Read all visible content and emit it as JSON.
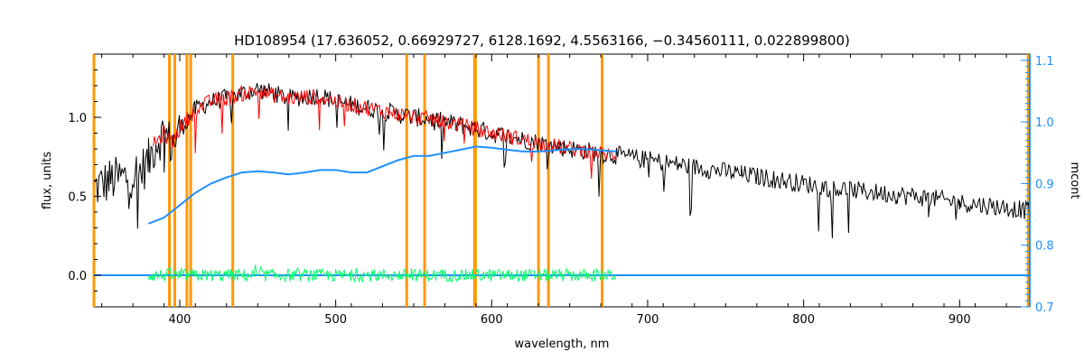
{
  "chart_data": {
    "type": "line",
    "title": "HD108954    (17.636052, 0.66929727, 6128.1692, 4.5563166, −0.34560111, 0.022899800)",
    "xlabel": "wavelength, nm",
    "ylabel": "flux, units",
    "ylabel_right": "mcont",
    "xlim": [
      345,
      945
    ],
    "ylim": [
      -0.2,
      1.4
    ],
    "ylim_right": [
      0.7,
      1.11
    ],
    "x_ticks": [
      400,
      500,
      600,
      700,
      800,
      900
    ],
    "y_ticks": [
      0.0,
      0.5,
      1.0
    ],
    "y_right_ticks": [
      0.7,
      0.8,
      0.9,
      1.0,
      1.1
    ],
    "y_ticks_labels": [
      "0.0",
      "0.5",
      "1.0"
    ],
    "y_right_ticks_labels": [
      "0.7",
      "0.8",
      "0.9",
      "1.0",
      "1.1"
    ],
    "grid": false,
    "colors": {
      "observed": "#000000",
      "model": "#ff0000",
      "residual": "#00ff66",
      "continuum": "#1e90ff",
      "lines": "#ff9900",
      "right_axis": "#1e90ff"
    },
    "vertical_lines_x": [
      345,
      393.4,
      396.8,
      404.6,
      407.0,
      434.0,
      545.5,
      557.0,
      589.0,
      589.6,
      630.0,
      636.4,
      670.8,
      944
    ],
    "series": [
      {
        "kind": "observed",
        "x": [
          345,
          355,
          365,
          375,
          380,
          385,
          390,
          395,
          400,
          410,
          420,
          430,
          440,
          450,
          460,
          470,
          480,
          490,
          500,
          510,
          520,
          530,
          540,
          550,
          560,
          570,
          580,
          590,
          600,
          610,
          620,
          630,
          640,
          650,
          660,
          670,
          680,
          700,
          720,
          740,
          760,
          780,
          800,
          820,
          840,
          860,
          880,
          900,
          920,
          945
        ],
        "y": [
          0.55,
          0.6,
          0.62,
          0.66,
          0.72,
          0.85,
          0.9,
          0.82,
          0.92,
          1.05,
          1.1,
          1.12,
          1.15,
          1.18,
          1.15,
          1.12,
          1.13,
          1.14,
          1.1,
          1.08,
          1.06,
          1.04,
          1.02,
          1.0,
          0.99,
          0.97,
          0.95,
          0.93,
          0.9,
          0.88,
          0.86,
          0.84,
          0.82,
          0.8,
          0.79,
          0.77,
          0.76,
          0.73,
          0.7,
          0.67,
          0.64,
          0.61,
          0.58,
          0.55,
          0.53,
          0.51,
          0.49,
          0.46,
          0.44,
          0.41
        ]
      },
      {
        "kind": "model",
        "x": [
          383,
          390,
          395,
          400,
          410,
          420,
          430,
          440,
          450,
          460,
          470,
          480,
          490,
          500,
          510,
          520,
          530,
          540,
          550,
          560,
          570,
          580,
          590,
          600,
          610,
          620,
          630,
          640,
          650,
          660,
          670,
          680
        ],
        "y": [
          0.82,
          0.9,
          0.84,
          0.93,
          1.05,
          1.1,
          1.12,
          1.15,
          1.17,
          1.14,
          1.12,
          1.13,
          1.13,
          1.1,
          1.08,
          1.06,
          1.04,
          1.02,
          1.0,
          0.99,
          0.97,
          0.95,
          0.93,
          0.9,
          0.88,
          0.86,
          0.84,
          0.82,
          0.8,
          0.79,
          0.77,
          0.76
        ]
      },
      {
        "kind": "continuum",
        "x": [
          380,
          390,
          400,
          410,
          420,
          430,
          440,
          450,
          460,
          470,
          480,
          490,
          500,
          510,
          520,
          530,
          540,
          550,
          560,
          570,
          580,
          590,
          600,
          610,
          620,
          630,
          640,
          650,
          660,
          670,
          680
        ],
        "y": [
          0.835,
          0.845,
          0.865,
          0.885,
          0.9,
          0.91,
          0.918,
          0.92,
          0.918,
          0.915,
          0.918,
          0.922,
          0.922,
          0.918,
          0.918,
          0.928,
          0.938,
          0.945,
          0.945,
          0.95,
          0.955,
          0.96,
          0.958,
          0.955,
          0.952,
          0.952,
          0.954,
          0.956,
          0.956,
          0.954,
          0.952
        ]
      }
    ]
  }
}
